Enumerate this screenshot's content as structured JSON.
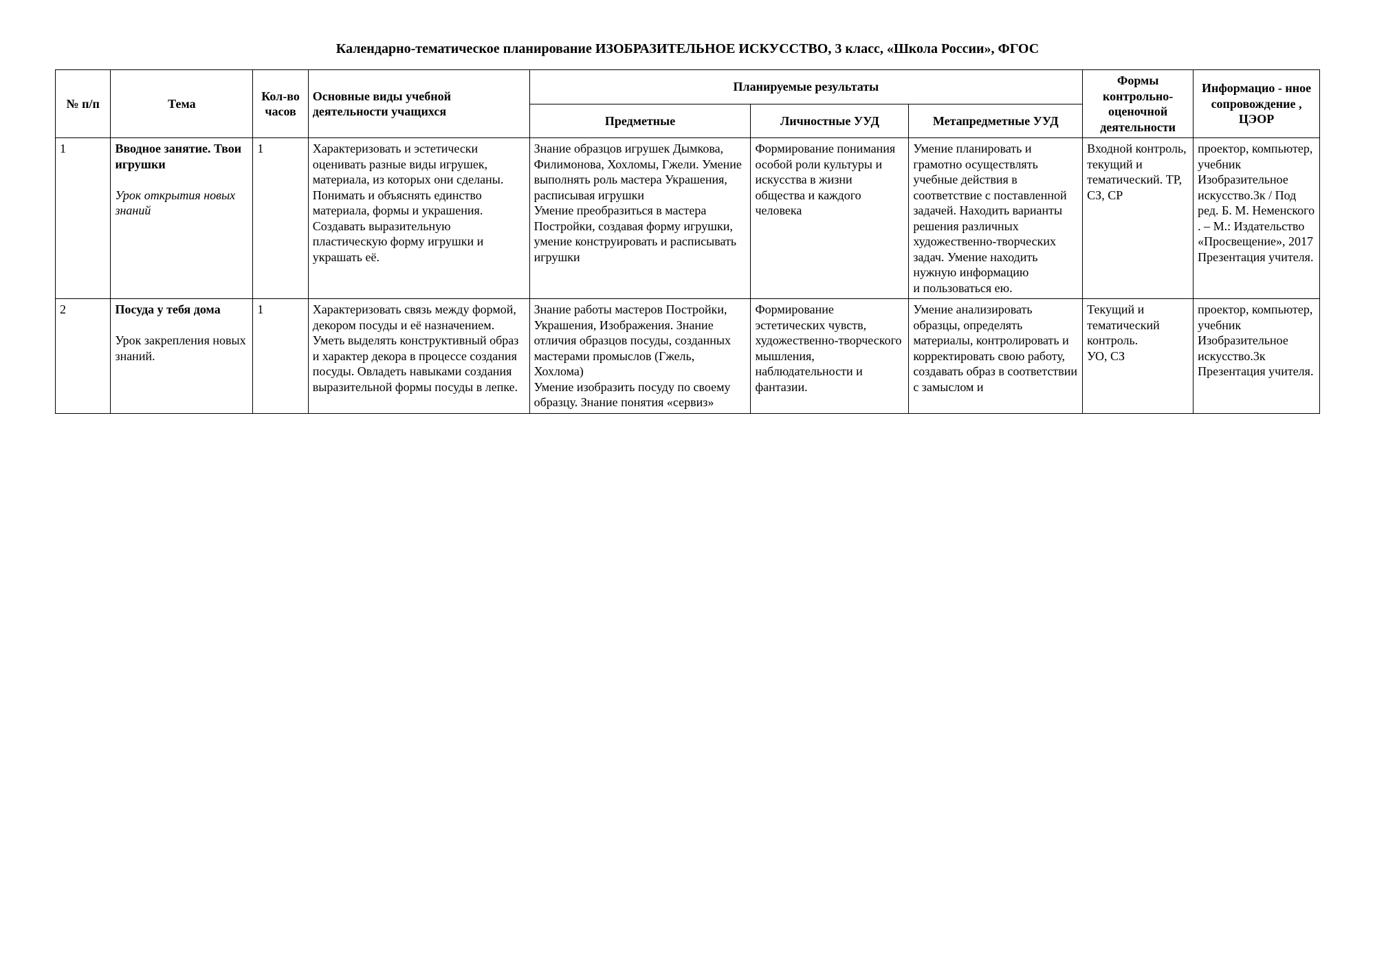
{
  "title": "Календарно-тематическое планирование ИЗОБРАЗИТЕЛЬНОЕ ИСКУССТВО, 3 класс, «Школа России», ФГОС",
  "headers": {
    "num": "№ п/п",
    "tema": "Тема",
    "hours": "Кол-во часов",
    "activities": "Основные виды учебной деятельности учащихся",
    "results_group": "Планируемые результаты",
    "predmet": "Предметные",
    "lichnost": "Личностные УУД",
    "metapred": "Метапредметные УУД",
    "forms": "Формы контрольно-оценочной деятельности",
    "info": "Информацио - нное сопровождение , ЦЭОР"
  },
  "shared": {
    "forms_row1": "Входной контроль, текущий и тематический. ТР, СЗ, СР",
    "info_row1": "проектор, компьютер, учебник Изобразительное искусство.3к / Под ред. Б. М. Неменского . – М.: Издательство «Просвещение», 2017 Презентация учителя."
  },
  "rows": [
    {
      "num": "1",
      "tema_bold": "Вводное занятие. Твои игрушки",
      "tema_italic": "Урок открытия новых знаний",
      "hours": "1",
      "activities": "Характеризовать и эстетически оценивать разные виды игрушек, материала, из которых они сделаны. Понимать и объяснять единство материала, формы и украшения. Создавать выразительную пластическую форму игрушки и украшать её.",
      "predmet": "Знание образцов игрушек Дымкова, Филимонова, Хохломы, Гжели. Умение выполнять роль мастера Украшения, расписывая игрушки\nУмение преобразиться в мастера Постройки, создавая форму игрушки, умение конструировать  и расписывать игрушки",
      "lichnost": "Формирование понимания особой роли культуры и искусства в жизни общества и каждого человека",
      "metapred": "Умение планировать и грамотно осуществлять учебные действия в соответствие с поставленной задачей. Находить варианты решения различных художественно-творческих задач. Умение  находить нужную информацию\nи пользоваться ею."
    },
    {
      "num": "2",
      "tema_bold": "Посуда у тебя дома",
      "tema_plain": "Урок закрепления новых знаний.",
      "hours": "1",
      "activities": "Характеризовать связь между формой, декором посуды и её назначением. Уметь выделять конструктивный образ и характер декора в процессе создания посуды. Овладеть навыками  создания выразительной формы посуды в лепке.",
      "predmet": "Знание работы мастеров Постройки, Украшения, Изображения. Знание отличия образцов посуды, созданных мастерами промыслов (Гжель, Хохлома)\nУмение изобразить посуду по своему образцу. Знание понятия «сервиз»",
      "lichnost": "Формирование эстетических чувств, художественно-творческого мышления, наблюдательности и фантазии.",
      "metapred": "Умение анализировать образцы, определять материалы, контролировать и корректировать свою работу, создавать образ в соответствии с замыслом и",
      "forms": "Текущий и тематический контроль.\nУО, СЗ",
      "info": "проектор, компьютер, учебник Изобразительное искусство.3к\nПрезентация учителя."
    }
  ],
  "style": {
    "page_bg": "#ffffff",
    "text_color": "#000000",
    "border_color": "#000000",
    "title_fontsize": 20,
    "cell_fontsize": 18,
    "font_family": "Times New Roman"
  }
}
